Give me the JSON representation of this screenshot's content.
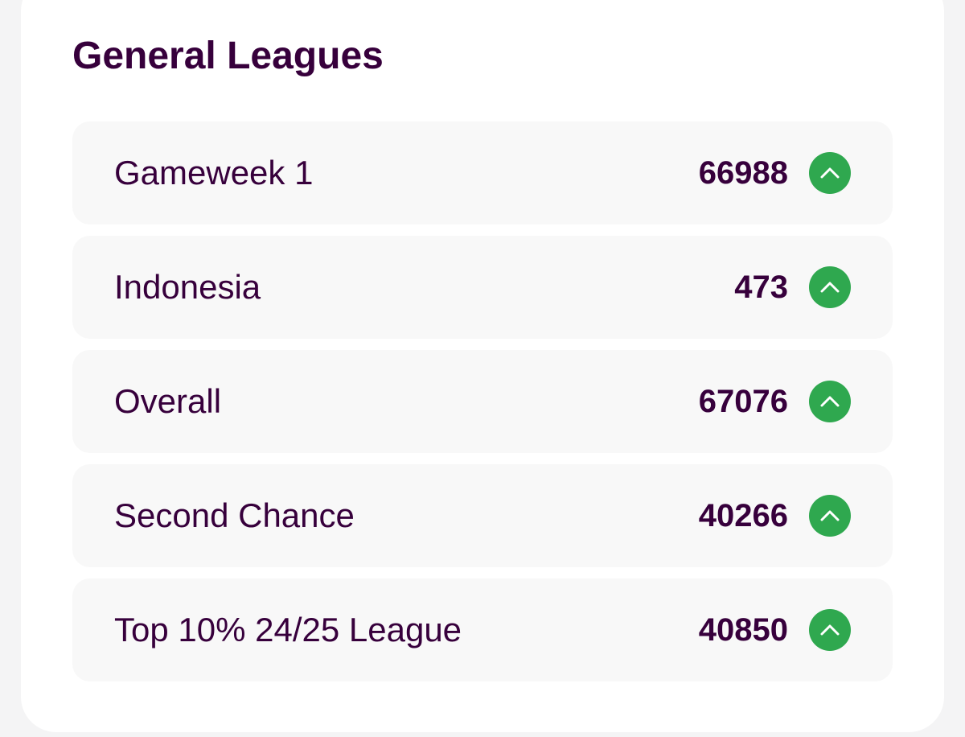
{
  "section": {
    "title": "General Leagues"
  },
  "leagues": [
    {
      "name": "Gameweek 1",
      "rank": "66988",
      "movement": "up"
    },
    {
      "name": "Indonesia",
      "rank": "473",
      "movement": "up"
    },
    {
      "name": "Overall",
      "rank": "67076",
      "movement": "up"
    },
    {
      "name": "Second Chance",
      "rank": "40266",
      "movement": "up"
    },
    {
      "name": "Top 10% 24/25 League",
      "rank": "40850",
      "movement": "up"
    }
  ],
  "icons": {
    "movement": "chevron-up-icon"
  },
  "colors": {
    "text": "#37003c",
    "movement_up": "#2fa84f",
    "row_background": "#f8f8f8",
    "card_background": "#ffffff"
  }
}
